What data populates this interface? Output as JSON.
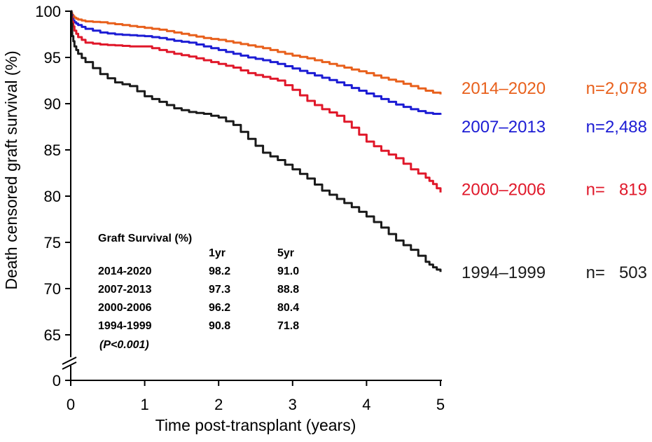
{
  "chart_data": {
    "type": "line",
    "xlabel": "Time post-transplant (years)",
    "ylabel": "Death censored graft survival (%)",
    "xlim": [
      0,
      5
    ],
    "ylim": [
      62,
      100
    ],
    "x_ticks": [
      "0",
      "1",
      "2",
      "3",
      "4",
      "5"
    ],
    "y_ticks": [
      "100",
      "95",
      "90",
      "85",
      "80",
      "75",
      "70",
      "65"
    ],
    "y_break_label": "0",
    "series": [
      {
        "name": "2014–2020",
        "n_label": "n=2,078",
        "color": "#e8601c",
        "x": [
          0,
          0.02,
          0.05,
          0.1,
          0.2,
          0.4,
          0.6,
          0.8,
          1.0,
          1.2,
          1.4,
          1.6,
          1.8,
          2.0,
          2.2,
          2.4,
          2.6,
          2.8,
          3.0,
          3.2,
          3.4,
          3.6,
          3.8,
          4.0,
          4.2,
          4.4,
          4.6,
          4.8,
          5.0
        ],
        "y": [
          100,
          99.6,
          99.3,
          99.1,
          98.9,
          98.8,
          98.6,
          98.4,
          98.2,
          98.0,
          97.7,
          97.4,
          97.1,
          96.9,
          96.6,
          96.3,
          96.0,
          95.6,
          95.2,
          94.9,
          94.5,
          94.1,
          93.7,
          93.3,
          92.8,
          92.4,
          91.9,
          91.4,
          91.0
        ]
      },
      {
        "name": "2007–2013",
        "n_label": "n=2,488",
        "color": "#1c1cd4",
        "x": [
          0,
          0.02,
          0.05,
          0.1,
          0.2,
          0.4,
          0.6,
          0.8,
          1.0,
          1.2,
          1.4,
          1.6,
          1.8,
          2.0,
          2.2,
          2.4,
          2.6,
          2.8,
          3.0,
          3.2,
          3.4,
          3.6,
          3.8,
          4.0,
          4.2,
          4.4,
          4.6,
          4.8,
          5.0
        ],
        "y": [
          100,
          99.2,
          98.8,
          98.5,
          98.1,
          97.7,
          97.5,
          97.4,
          97.3,
          97.1,
          96.8,
          96.6,
          96.2,
          95.8,
          95.4,
          95.0,
          94.7,
          94.3,
          93.8,
          93.3,
          92.8,
          92.3,
          91.7,
          91.1,
          90.5,
          89.9,
          89.4,
          89.0,
          88.8
        ]
      },
      {
        "name": "2000–2006",
        "n_label": "n=   819",
        "color": "#e0182a",
        "x": [
          0,
          0.02,
          0.05,
          0.1,
          0.2,
          0.4,
          0.6,
          0.8,
          1.0,
          1.2,
          1.4,
          1.6,
          1.8,
          2.0,
          2.2,
          2.4,
          2.6,
          2.8,
          3.0,
          3.2,
          3.4,
          3.6,
          3.8,
          4.0,
          4.2,
          4.4,
          4.6,
          4.8,
          4.9,
          5.0
        ],
        "y": [
          100,
          98.8,
          97.9,
          97.2,
          96.6,
          96.4,
          96.3,
          96.2,
          96.2,
          95.8,
          95.4,
          95.1,
          94.7,
          94.3,
          93.9,
          93.3,
          92.9,
          92.5,
          91.5,
          90.3,
          89.4,
          88.7,
          87.4,
          85.9,
          84.9,
          84.1,
          82.9,
          82.0,
          81.3,
          80.4
        ]
      },
      {
        "name": "1994–1999",
        "n_label": "n=   503",
        "color": "#1a1a1a",
        "x": [
          0,
          0.02,
          0.05,
          0.1,
          0.2,
          0.4,
          0.6,
          0.8,
          1.0,
          1.2,
          1.4,
          1.6,
          1.8,
          2.0,
          2.2,
          2.4,
          2.6,
          2.8,
          3.0,
          3.2,
          3.4,
          3.6,
          3.8,
          4.0,
          4.2,
          4.4,
          4.6,
          4.8,
          4.9,
          5.0
        ],
        "y": [
          100,
          97.3,
          96.2,
          95.4,
          94.5,
          93.2,
          92.3,
          91.9,
          90.8,
          90.2,
          89.5,
          89.1,
          88.9,
          88.5,
          87.7,
          86.2,
          84.7,
          83.9,
          82.9,
          81.9,
          80.6,
          79.7,
          78.8,
          77.8,
          76.6,
          75.2,
          74.2,
          72.9,
          72.3,
          71.8
        ]
      }
    ],
    "table": {
      "title": "Graft Survival (%)",
      "headers": [
        "",
        "1yr",
        "5yr"
      ],
      "rows": [
        [
          "2014-2020",
          "98.2",
          "91.0"
        ],
        [
          "2007-2013",
          "97.3",
          "88.8"
        ],
        [
          "2000-2006",
          "96.2",
          "80.4"
        ],
        [
          "1994-1999",
          "90.8",
          "71.8"
        ]
      ],
      "note": "(P<0.001)"
    }
  }
}
